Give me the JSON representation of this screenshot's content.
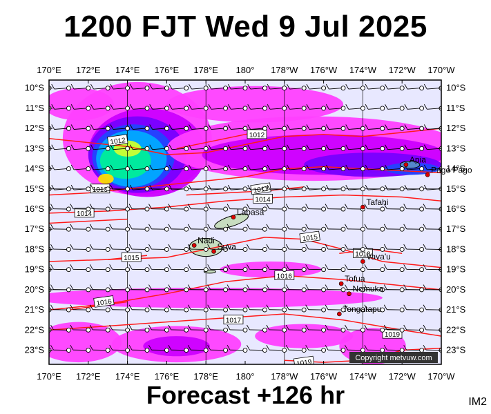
{
  "header": {
    "title": "1200 FJT Wed 9 Jul 2025"
  },
  "footer": {
    "forecast": "Forecast +126 hr",
    "code": "IM2"
  },
  "credit": "Copyright metvuw.com",
  "axes": {
    "lon_labels": [
      "170°E",
      "172°E",
      "174°E",
      "176°E",
      "178°E",
      "180°",
      "178°W",
      "176°W",
      "174°W",
      "172°W",
      "170°W"
    ],
    "lat_labels": [
      "10°S",
      "11°S",
      "12°S",
      "13°S",
      "14°S",
      "15°S",
      "16°S",
      "17°S",
      "18°S",
      "19°S",
      "20°S",
      "21°S",
      "22°S",
      "23°S"
    ]
  },
  "places": [
    {
      "name": "Apia",
      "lon": 188.2,
      "lat": -13.8
    },
    {
      "name": "Pago Pago",
      "lon": 189.3,
      "lat": -14.3
    },
    {
      "name": "Tafahi",
      "lon": 186.0,
      "lat": -15.9
    },
    {
      "name": "Labasa",
      "lon": 179.4,
      "lat": -16.4
    },
    {
      "name": "Nadi",
      "lon": 177.4,
      "lat": -17.8
    },
    {
      "name": "Suva",
      "lon": 178.4,
      "lat": -18.1
    },
    {
      "name": "Vava'u",
      "lon": 186.0,
      "lat": -18.6
    },
    {
      "name": "Tofua",
      "lon": 184.9,
      "lat": -19.7
    },
    {
      "name": "Nomuka",
      "lon": 185.3,
      "lat": -20.2
    },
    {
      "name": "Tongatapu",
      "lon": 184.8,
      "lat": -21.2
    }
  ],
  "isobars": [
    {
      "label": "1012",
      "points": [
        [
          170,
          -12.5
        ],
        [
          172,
          -12.7
        ],
        [
          174,
          -12.9
        ],
        [
          176,
          -13.3
        ],
        [
          178,
          -13.2
        ],
        [
          180,
          -12.8
        ],
        [
          182,
          -12.4
        ],
        [
          184,
          -12.3
        ],
        [
          186,
          -12.4
        ],
        [
          188,
          -12.2
        ],
        [
          190,
          -12.0
        ]
      ],
      "label_at": [
        173.5,
        -12.6
      ]
    },
    {
      "label": "1012",
      "points": [
        [
          176.5,
          -13.0
        ],
        [
          179,
          -12.5
        ],
        [
          181,
          -12.1
        ]
      ],
      "label_at": [
        180.6,
        -12.3
      ]
    },
    {
      "label": "1013",
      "points": [
        [
          170,
          -15.3
        ],
        [
          172,
          -15.2
        ],
        [
          174,
          -15.0
        ],
        [
          176,
          -14.8
        ],
        [
          178,
          -14.6
        ],
        [
          180,
          -14.4
        ],
        [
          182,
          -14.0
        ],
        [
          184,
          -13.9
        ],
        [
          186,
          -14.0
        ],
        [
          188,
          -14.1
        ],
        [
          190,
          -14.2
        ]
      ],
      "label_at": [
        172.6,
        -15.0
      ]
    },
    {
      "label": "1013",
      "points": [
        [
          177,
          -15.3
        ],
        [
          181,
          -15.1
        ],
        [
          183,
          -14.9
        ]
      ],
      "label_at": [
        180.8,
        -15.0
      ]
    },
    {
      "label": "1014",
      "points": [
        [
          170,
          -16.2
        ],
        [
          173,
          -16.1
        ],
        [
          176,
          -15.9
        ],
        [
          179,
          -15.6
        ],
        [
          182,
          -15.4
        ],
        [
          185,
          -15.3
        ],
        [
          188,
          -15.4
        ],
        [
          190,
          -15.6
        ]
      ],
      "label_at": [
        180.9,
        -15.5
      ]
    },
    {
      "label": "1014",
      "points": [
        [
          170,
          -16.7
        ],
        [
          172,
          -16.6
        ],
        [
          174,
          -16.5
        ]
      ],
      "label_at": [
        171.8,
        -16.2
      ]
    },
    {
      "label": "1015",
      "points": [
        [
          170,
          -18.6
        ],
        [
          173,
          -18.5
        ],
        [
          176,
          -18.4
        ],
        [
          179,
          -17.8
        ],
        [
          181,
          -17.4
        ],
        [
          183,
          -17.5
        ],
        [
          185,
          -18.0
        ],
        [
          187,
          -18.6
        ],
        [
          190,
          -18.9
        ]
      ],
      "label_at": [
        183.3,
        -17.4
      ]
    },
    {
      "label": "1015",
      "points": [
        [
          173,
          -18.5
        ],
        [
          175,
          -18.3
        ]
      ],
      "label_at": [
        174.2,
        -18.4
      ]
    },
    {
      "label": "1016",
      "points": [
        [
          170,
          -21.0
        ],
        [
          173,
          -20.7
        ],
        [
          176,
          -20.2
        ],
        [
          179,
          -19.6
        ],
        [
          182,
          -19.3
        ],
        [
          185,
          -19.5
        ],
        [
          188,
          -19.8
        ],
        [
          190,
          -20.0
        ]
      ],
      "label_at": [
        182.0,
        -19.3
      ]
    },
    {
      "label": "1016",
      "points": [
        [
          171,
          -21.0
        ],
        [
          174,
          -20.6
        ]
      ],
      "label_at": [
        172.8,
        -20.6
      ]
    },
    {
      "label": "1017",
      "points": [
        [
          170,
          -22.0
        ],
        [
          173,
          -21.8
        ],
        [
          176,
          -21.6
        ],
        [
          179,
          -21.4
        ],
        [
          182,
          -21.2
        ],
        [
          185,
          -21.5
        ],
        [
          188,
          -22.0
        ],
        [
          190,
          -22.3
        ]
      ],
      "label_at": [
        179.4,
        -21.5
      ]
    },
    {
      "label": "1019",
      "points": [
        [
          186,
          -23.6
        ],
        [
          188,
          -23.0
        ],
        [
          190,
          -22.9
        ]
      ],
      "label_at": [
        187.5,
        -22.2
      ]
    },
    {
      "label": "1019",
      "points": [
        [
          182,
          -23.5
        ],
        [
          184,
          -23.6
        ],
        [
          186,
          -23.5
        ]
      ],
      "label_at": [
        183.0,
        -23.6
      ]
    },
    {
      "label": "1018",
      "points": [
        [
          184.8,
          -18.2
        ],
        [
          186.5,
          -18.0
        ],
        [
          188,
          -18.2
        ]
      ],
      "label_at": [
        186.0,
        -18.2
      ]
    }
  ],
  "rain_blobs": [
    {
      "color": "#ff40ff",
      "lon": 174.5,
      "lat": -12.5,
      "rx_deg": 3.8,
      "ry_deg": 2.8
    },
    {
      "color": "#cc00ff",
      "lon": 175,
      "lat": -13.2,
      "rx_deg": 3.0,
      "ry_deg": 2.2
    },
    {
      "color": "#7700ff",
      "lon": 174.5,
      "lat": -13.3,
      "rx_deg": 2.5,
      "ry_deg": 1.9
    },
    {
      "color": "#2244ff",
      "lon": 174.3,
      "lat": -13.4,
      "rx_deg": 2.1,
      "ry_deg": 1.6
    },
    {
      "color": "#00aaff",
      "lon": 174.2,
      "lat": -13.5,
      "rx_deg": 1.8,
      "ry_deg": 1.4
    },
    {
      "color": "#00ee99",
      "lon": 173.9,
      "lat": -13.6,
      "rx_deg": 1.3,
      "ry_deg": 0.9
    },
    {
      "color": "#ccff33",
      "lon": 174.0,
      "lat": -13.0,
      "rx_deg": 0.7,
      "ry_deg": 0.4
    },
    {
      "color": "#ffdd00",
      "lon": 172.9,
      "lat": -14.5,
      "rx_deg": 0.4,
      "ry_deg": 0.25
    },
    {
      "color": "#ff40ff",
      "lon": 183.5,
      "lat": -13.0,
      "rx_deg": 7.5,
      "ry_deg": 1.6
    },
    {
      "color": "#cc00ff",
      "lon": 184.0,
      "lat": -13.3,
      "rx_deg": 6.2,
      "ry_deg": 1.0
    },
    {
      "color": "#7700ff",
      "lon": 186.5,
      "lat": -13.8,
      "rx_deg": 3.5,
      "ry_deg": 0.6
    },
    {
      "color": "#2244ff",
      "lon": 188.5,
      "lat": -14.0,
      "rx_deg": 1.4,
      "ry_deg": 0.3
    },
    {
      "color": "#ff40ff",
      "lon": 171.5,
      "lat": -10.8,
      "rx_deg": 1.8,
      "ry_deg": 0.8
    },
    {
      "color": "#ff40ff",
      "lon": 180.5,
      "lat": -10.8,
      "rx_deg": 4.5,
      "ry_deg": 0.9
    },
    {
      "color": "#ff40ff",
      "lon": 181.3,
      "lat": -19.0,
      "rx_deg": 2.6,
      "ry_deg": 0.4
    },
    {
      "color": "#ff40ff",
      "lon": 178.0,
      "lat": -20.4,
      "rx_deg": 9.0,
      "ry_deg": 0.5
    },
    {
      "color": "#ff40ff",
      "lon": 171.5,
      "lat": -22.6,
      "rx_deg": 2.2,
      "ry_deg": 1.0
    },
    {
      "color": "#ff40ff",
      "lon": 176.5,
      "lat": -22.7,
      "rx_deg": 3.3,
      "ry_deg": 0.9
    },
    {
      "color": "#cc00ff",
      "lon": 176.5,
      "lat": -22.8,
      "rx_deg": 1.7,
      "ry_deg": 0.5
    },
    {
      "color": "#ff40ff",
      "lon": 183.0,
      "lat": -22.3,
      "rx_deg": 2.5,
      "ry_deg": 0.6
    },
    {
      "color": "#ff40ff",
      "lon": 186.5,
      "lat": -22.8,
      "rx_deg": 1.7,
      "ry_deg": 0.9
    }
  ]
}
